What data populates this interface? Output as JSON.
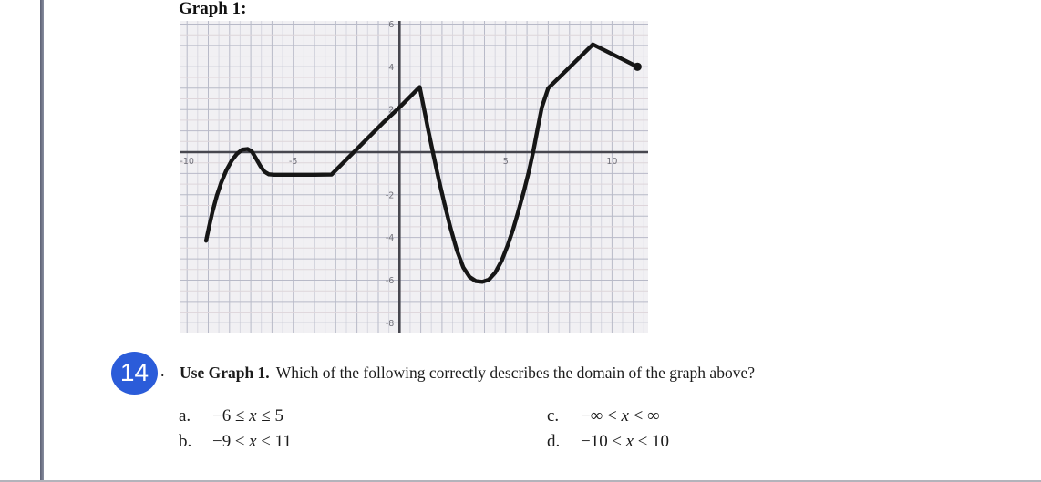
{
  "page": {
    "graph_label": "Graph 1:"
  },
  "question": {
    "number": "14",
    "separator": ".",
    "lead_bold": "Use Graph 1.",
    "body": "Which of the following correctly describes the domain of the graph above?"
  },
  "answers": [
    {
      "letter": "a.",
      "pre": "−6 ≤ ",
      "var": "x",
      "post": " ≤ 5"
    },
    {
      "letter": "b.",
      "pre": "−9 ≤ ",
      "var": "x",
      "post": " ≤ 11"
    },
    {
      "letter": "c.",
      "pre": "−∞ < ",
      "var": "x",
      "post": " < ∞"
    },
    {
      "letter": "d.",
      "pre": "−10 ≤ ",
      "var": "x",
      "post": " ≤ 10"
    }
  ],
  "colors": {
    "question_badge": "#2b5cd9",
    "left_rule": "#6b7088",
    "bottom_rule": "#b3b3bb"
  },
  "chart_data": {
    "type": "line",
    "title": "Graph 1",
    "xlabel": "",
    "ylabel": "",
    "xlim": [
      -10.35,
      11.7
    ],
    "ylim": [
      -8.5,
      6.15
    ],
    "x_ticks": [
      -10,
      -5,
      5,
      10
    ],
    "y_ticks": [
      6,
      4,
      2,
      -2,
      -4,
      -6,
      -8
    ],
    "grid": "on",
    "grid_minor_step": 0.5,
    "grid_major_step": 1,
    "domain_shown": [
      -9,
      11
    ],
    "series": [
      {
        "name": "piecewise-curve",
        "points": [
          [
            -9.1,
            -4.15
          ],
          [
            -8.95,
            -3.45
          ],
          [
            -8.8,
            -2.8
          ],
          [
            -8.6,
            -2.05
          ],
          [
            -8.4,
            -1.45
          ],
          [
            -8.15,
            -0.85
          ],
          [
            -7.9,
            -0.4
          ],
          [
            -7.65,
            -0.08
          ],
          [
            -7.4,
            0.12
          ],
          [
            -7.15,
            0.15
          ],
          [
            -6.95,
            0.03
          ],
          [
            -6.75,
            -0.3
          ],
          [
            -6.55,
            -0.65
          ],
          [
            -6.35,
            -0.92
          ],
          [
            -6.15,
            -1.04
          ],
          [
            -5.9,
            -1.06
          ],
          [
            -5.0,
            -1.06
          ],
          [
            -4.0,
            -1.06
          ],
          [
            -3.2,
            -1.05
          ],
          [
            -2.4,
            -0.25
          ],
          [
            -1.6,
            0.55
          ],
          [
            -0.8,
            1.35
          ],
          [
            0,
            2.1
          ],
          [
            0.95,
            3.05
          ],
          [
            1.15,
            2.05
          ],
          [
            1.35,
            1.05
          ],
          [
            1.6,
            -0.15
          ],
          [
            1.85,
            -1.3
          ],
          [
            2.1,
            -2.35
          ],
          [
            2.4,
            -3.55
          ],
          [
            2.7,
            -4.6
          ],
          [
            3.0,
            -5.4
          ],
          [
            3.3,
            -5.85
          ],
          [
            3.6,
            -6.05
          ],
          [
            3.9,
            -6.08
          ],
          [
            4.2,
            -5.98
          ],
          [
            4.5,
            -5.65
          ],
          [
            4.8,
            -5.1
          ],
          [
            5.1,
            -4.35
          ],
          [
            5.35,
            -3.6
          ],
          [
            5.6,
            -2.75
          ],
          [
            5.85,
            -1.85
          ],
          [
            6.1,
            -0.85
          ],
          [
            6.3,
            0.05
          ],
          [
            6.5,
            1.1
          ],
          [
            6.7,
            2.1
          ],
          [
            7.0,
            3.0
          ],
          [
            9.1,
            5.05
          ],
          [
            11.2,
            4.0
          ]
        ],
        "endpoint_dot": [
          11.2,
          4.0
        ]
      }
    ],
    "colors": {
      "background": "#f1f0f3",
      "grid_minor_v": "#d8d8e0",
      "grid_minor_h": "#ded5da",
      "grid_major": "#b8bac8",
      "axis": "#47474f",
      "curve": "#161616",
      "label": "#72727b"
    }
  }
}
